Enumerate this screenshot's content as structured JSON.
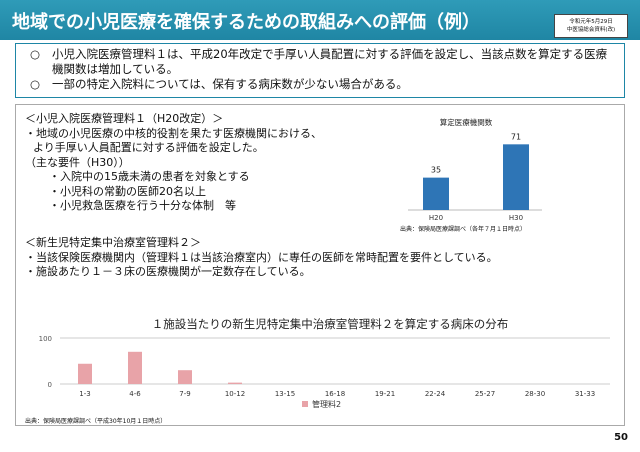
{
  "header": {
    "title": "地域での小児医療を確保するための取組みへの評価（例）",
    "stamp_line1": "令和元年5月29日",
    "stamp_line2": "中医協総会資料(改)"
  },
  "summary": {
    "items": [
      {
        "bullet": "○",
        "text": "小児入院医療管理料１は、平成20年改定で手厚い人員配置に対する評価を設定し、当該点数を算定する医療機関数は増加している。"
      },
      {
        "bullet": "○",
        "text": "一部の特定入院料については、保有する病床数が少ない場合がある。"
      }
    ]
  },
  "section1": {
    "heading": "＜小児入院医療管理料１（H20改定）＞",
    "line1": "・地域の小児医療の中核的役割を果たす医療機関における、",
    "line2": "より手厚い人員配置に対する評価を設定した。",
    "req_heading": "（主な要件（H30））",
    "req1": "・入院中の15歳未満の患者を対象とする",
    "req2": "・小児科の常勤の医師20名以上",
    "req3": "・小児救急医療を行う十分な体制　等"
  },
  "section2": {
    "heading": "＜新生児特定集中治療室管理料２＞",
    "line1": "・当該保険医療機関内（管理料１は当該治療室内）に専任の医師を常時配置を要件としている。",
    "line2": "・施設あたり１－３床の医療機関が一定数存在している。"
  },
  "source1": "出典：保険局医療課調べ（各年７月１日時点）",
  "source2": "出典：保険局医療課調べ（平成30年10月１日時点）",
  "page_number": "50",
  "chart_data": [
    {
      "type": "bar",
      "title": "算定医療機関数",
      "categories": [
        "H20",
        "H30"
      ],
      "values": [
        35,
        71
      ],
      "ylim": [
        0,
        80
      ],
      "color": "#2e75b6",
      "data_labels": [
        "35",
        "71"
      ]
    },
    {
      "type": "bar",
      "title": "１施設当たりの新生児特定集中治療室管理料２を算定する病床の分布",
      "categories": [
        "1-3",
        "4-6",
        "7-9",
        "10-12",
        "13-15",
        "16-18",
        "19-21",
        "22-24",
        "25-27",
        "28-30",
        "31-33"
      ],
      "series": [
        {
          "name": "管理料2",
          "values": [
            44,
            70,
            30,
            3,
            0,
            0,
            0,
            0,
            0,
            0,
            0
          ]
        }
      ],
      "yticks": [
        "100",
        "0"
      ],
      "ylim": [
        0,
        100
      ],
      "grid": true,
      "legend": "bottom",
      "color": "#e8a3a8"
    }
  ]
}
